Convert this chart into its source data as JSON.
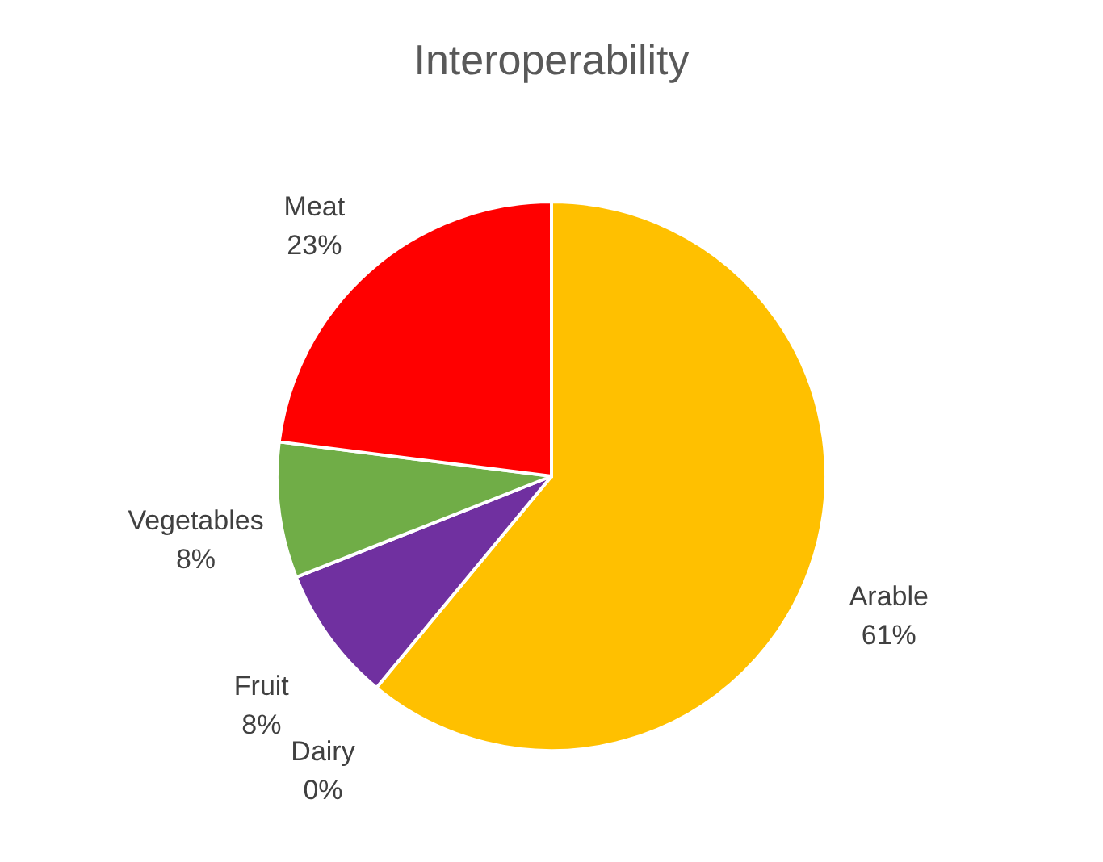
{
  "chart_data": {
    "type": "pie",
    "title": "Interoperability",
    "categories": [
      "Arable",
      "Dairy",
      "Fruit",
      "Vegetables",
      "Meat"
    ],
    "values": [
      61,
      0,
      8,
      8,
      23
    ],
    "colors": [
      "#ffc000",
      "#4472c4",
      "#7030a0",
      "#70ad47",
      "#ff0000"
    ],
    "value_labels": [
      "61%",
      "0%",
      "8%",
      "8%",
      "23%"
    ],
    "legend": false
  }
}
